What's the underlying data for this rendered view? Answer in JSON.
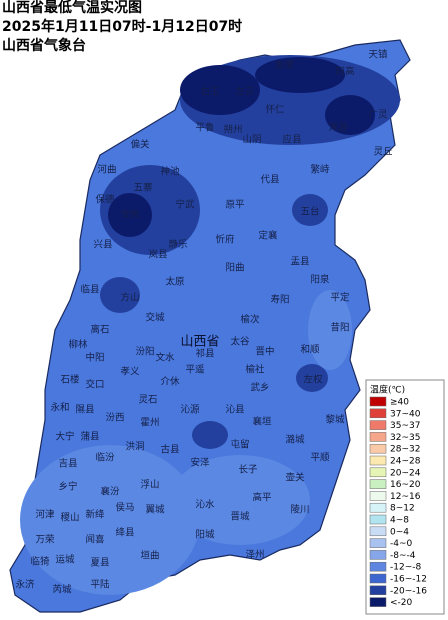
{
  "header": {
    "title": "山西省最低气温实况图",
    "period": "2025年1月11日07时-1月12日07时",
    "source": "山西省气象台"
  },
  "capital": "山西省",
  "counties": [
    "天镇",
    "阳高",
    "新荣",
    "左云",
    "右玉",
    "怀仁",
    "广灵",
    "浑源",
    "平鲁",
    "朔州",
    "山阴",
    "应县",
    "灵丘",
    "偏关",
    "河曲",
    "神池",
    "繁峙",
    "代县",
    "五寨",
    "宁武",
    "原平",
    "五台",
    "保德",
    "岢岚",
    "静乐",
    "忻府",
    "定襄",
    "兴县",
    "岚县",
    "盂县",
    "阳曲",
    "阳泉",
    "临县",
    "方山",
    "太原",
    "平定",
    "寿阳",
    "交城",
    "昔阳",
    "离石",
    "文水",
    "榆次",
    "柳林",
    "中阳",
    "祁县",
    "太谷",
    "和顺",
    "汾阳",
    "石楼",
    "孝义",
    "平遥",
    "晋中",
    "左权",
    "榆社",
    "交口",
    "介休",
    "永和",
    "隰县",
    "灵石",
    "沁源",
    "沁县",
    "武乡",
    "黎城",
    "大宁",
    "蒲县",
    "汾西",
    "霍州",
    "襄垣",
    "潞城",
    "屯留",
    "洪洞",
    "古县",
    "安泽",
    "长子",
    "平顺",
    "吉县",
    "临汾",
    "壶关",
    "乡宁",
    "襄汾",
    "浮山",
    "高平",
    "陵川",
    "晋城",
    "河津",
    "稷山",
    "新绛",
    "侯马",
    "翼城",
    "沁水",
    "阳城",
    "万荣",
    "闻喜",
    "绛县",
    "临猗",
    "运城",
    "夏县",
    "垣曲",
    "永济",
    "芮城",
    "平陆",
    "泽州"
  ],
  "legend": {
    "title": "温度(℃)",
    "items": [
      {
        "label": "≥40",
        "color": "#c00000"
      },
      {
        "label": "37~40",
        "color": "#e0403a"
      },
      {
        "label": "35~37",
        "color": "#f07a6a"
      },
      {
        "label": "32~35",
        "color": "#f6a68a"
      },
      {
        "label": "28~32",
        "color": "#f9c9a8"
      },
      {
        "label": "24~28",
        "color": "#fbe9b0"
      },
      {
        "label": "20~24",
        "color": "#e6f5b6"
      },
      {
        "label": "16~20",
        "color": "#c8f0c0"
      },
      {
        "label": "12~16",
        "color": "#eef9ee"
      },
      {
        "label": "8~12",
        "color": "#d6f4f8"
      },
      {
        "label": "4~8",
        "color": "#b2e4f0"
      },
      {
        "label": "0~4",
        "color": "#c8dcf6"
      },
      {
        "label": "-4~0",
        "color": "#a8c2f0"
      },
      {
        "label": "-8~-4",
        "color": "#86a6ea"
      },
      {
        "label": "-12~-8",
        "color": "#5e86e0"
      },
      {
        "label": "-16~-12",
        "color": "#3d66cf"
      },
      {
        "label": "-20~-16",
        "color": "#23409e"
      },
      {
        "label": "<-20",
        "color": "#0c1a6a"
      }
    ]
  }
}
